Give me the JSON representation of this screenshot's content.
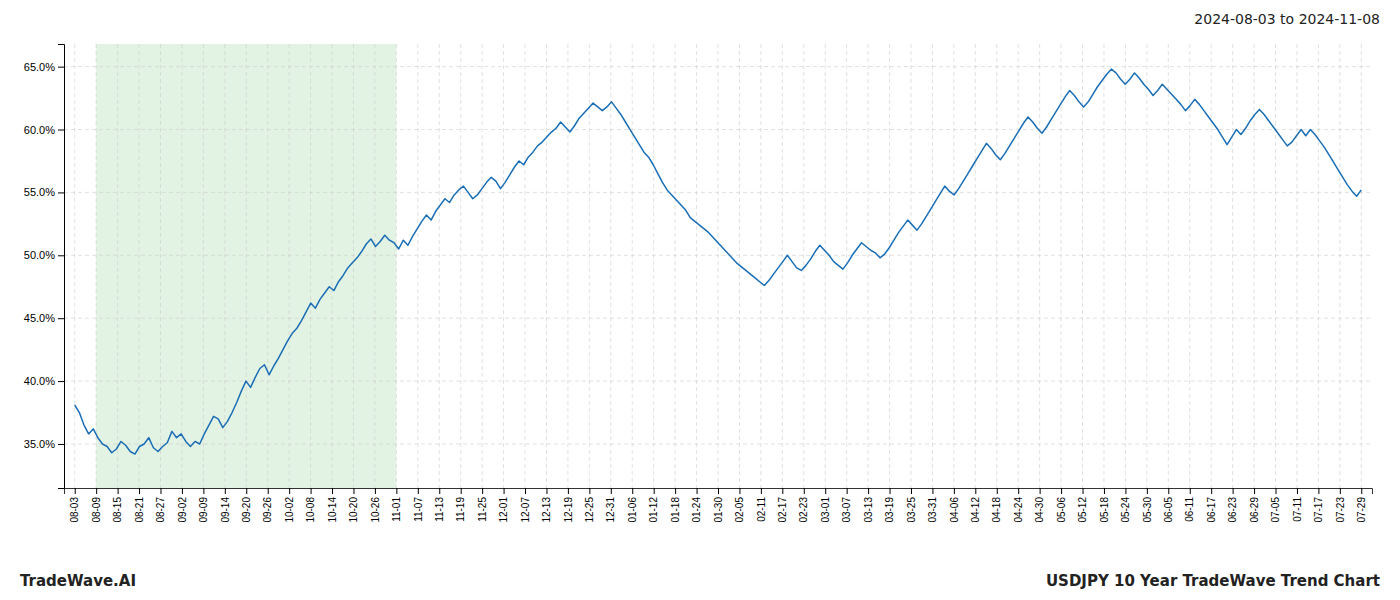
{
  "chart_data": {
    "type": "line",
    "title": "USDJPY 10 Year TradeWave Trend Chart",
    "subtitle": "2024-08-03 to 2024-11-08",
    "annotations": [
      "TradeWave.AI"
    ],
    "color": "#1a6eb5",
    "grid": true,
    "shaded_region": {
      "x_start": 1,
      "x_end": 15,
      "color": "#d4ecd4"
    },
    "xlim": [
      -0.5,
      60.5
    ],
    "xticks": [
      {
        "value": 0,
        "label": "08-03"
      },
      {
        "value": 1,
        "label": "08-09"
      },
      {
        "value": 2,
        "label": "08-15"
      },
      {
        "value": 3,
        "label": "08-21"
      },
      {
        "value": 4,
        "label": "08-27"
      },
      {
        "value": 5,
        "label": "09-02"
      },
      {
        "value": 6,
        "label": "09-09"
      },
      {
        "value": 7,
        "label": "09-14"
      },
      {
        "value": 8,
        "label": "09-20"
      },
      {
        "value": 9,
        "label": "09-26"
      },
      {
        "value": 10,
        "label": "10-02"
      },
      {
        "value": 11,
        "label": "10-08"
      },
      {
        "value": 12,
        "label": "10-14"
      },
      {
        "value": 13,
        "label": "10-20"
      },
      {
        "value": 14,
        "label": "10-26"
      },
      {
        "value": 15,
        "label": "11-01"
      },
      {
        "value": 16,
        "label": "11-07"
      },
      {
        "value": 17,
        "label": "11-13"
      },
      {
        "value": 18,
        "label": "11-19"
      },
      {
        "value": 19,
        "label": "11-25"
      },
      {
        "value": 20,
        "label": "12-01"
      },
      {
        "value": 21,
        "label": "12-07"
      },
      {
        "value": 22,
        "label": "12-13"
      },
      {
        "value": 23,
        "label": "12-19"
      },
      {
        "value": 24,
        "label": "12-25"
      },
      {
        "value": 25,
        "label": "12-31"
      },
      {
        "value": 26,
        "label": "01-06"
      },
      {
        "value": 27,
        "label": "01-12"
      },
      {
        "value": 28,
        "label": "01-18"
      },
      {
        "value": 29,
        "label": "01-24"
      },
      {
        "value": 30,
        "label": "01-30"
      },
      {
        "value": 31,
        "label": "02-05"
      },
      {
        "value": 32,
        "label": "02-11"
      },
      {
        "value": 33,
        "label": "02-17"
      },
      {
        "value": 34,
        "label": "02-23"
      },
      {
        "value": 35,
        "label": "03-01"
      },
      {
        "value": 36,
        "label": "03-07"
      },
      {
        "value": 37,
        "label": "03-13"
      },
      {
        "value": 38,
        "label": "03-19"
      },
      {
        "value": 39,
        "label": "03-25"
      },
      {
        "value": 40,
        "label": "03-31"
      },
      {
        "value": 41,
        "label": "04-06"
      },
      {
        "value": 42,
        "label": "04-12"
      },
      {
        "value": 43,
        "label": "04-18"
      },
      {
        "value": 44,
        "label": "04-24"
      },
      {
        "value": 45,
        "label": "04-30"
      },
      {
        "value": 46,
        "label": "05-06"
      },
      {
        "value": 47,
        "label": "05-12"
      },
      {
        "value": 48,
        "label": "05-18"
      },
      {
        "value": 49,
        "label": "05-24"
      },
      {
        "value": 50,
        "label": "05-30"
      },
      {
        "value": 51,
        "label": "06-05"
      },
      {
        "value": 52,
        "label": "06-11"
      },
      {
        "value": 53,
        "label": "06-17"
      },
      {
        "value": 54,
        "label": "06-23"
      },
      {
        "value": 55,
        "label": "06-29"
      },
      {
        "value": 56,
        "label": "07-05"
      },
      {
        "value": 57,
        "label": "07-11"
      },
      {
        "value": 58,
        "label": "07-17"
      },
      {
        "value": 59,
        "label": "07-23"
      },
      {
        "value": 60,
        "label": "07-29"
      }
    ],
    "ylim": [
      0.315,
      0.668
    ],
    "yticks": [
      {
        "value": 0.35,
        "label": "35.0%"
      },
      {
        "value": 0.4,
        "label": "40.0%"
      },
      {
        "value": 0.45,
        "label": "45.0%"
      },
      {
        "value": 0.5,
        "label": "50.0%"
      },
      {
        "value": 0.55,
        "label": "55.0%"
      },
      {
        "value": 0.6,
        "label": "60.0%"
      },
      {
        "value": 0.65,
        "label": "65.0%"
      }
    ],
    "x": [
      0,
      0.2158,
      0.4317,
      0.6475,
      0.8633,
      1.0791,
      1.295,
      1.5108,
      1.7266,
      1.9424,
      2.1583,
      2.3741,
      2.5899,
      2.8058,
      3.0216,
      3.2374,
      3.4532,
      3.6691,
      3.8849,
      4.1007,
      4.3165,
      4.5324,
      4.7482,
      4.964,
      5.1799,
      5.3957,
      5.6115,
      5.8273,
      6.0432,
      6.259,
      6.4748,
      6.6906,
      6.9065,
      7.1223,
      7.3381,
      7.554,
      7.7698,
      7.9856,
      8.2014,
      8.4173,
      8.6331,
      8.8489,
      9.0647,
      9.2806,
      9.4964,
      9.7122,
      9.9281,
      10.1439,
      10.3597,
      10.5755,
      10.7914,
      11.0072,
      11.223,
      11.4388,
      11.6547,
      11.8705,
      12.0863,
      12.3022,
      12.518,
      12.7338,
      12.9496,
      13.1655,
      13.3813,
      13.5971,
      13.8129,
      14.0288,
      14.2446,
      14.4604,
      14.6763,
      14.8921,
      15.1079,
      15.3237,
      15.5396,
      15.7554,
      15.9712,
      16.1871,
      16.4029,
      16.6187,
      16.8345,
      17.0504,
      17.2662,
      17.482,
      17.6978,
      17.9137,
      18.1295,
      18.3453,
      18.5612,
      18.777,
      18.9928,
      19.2086,
      19.4245,
      19.6403,
      19.8561,
      20.0719,
      20.2878,
      20.5036,
      20.7194,
      20.9353,
      21.1511,
      21.3669,
      21.5827,
      21.7986,
      22.0144,
      22.2302,
      22.446,
      22.6619,
      22.8777,
      23.0935,
      23.3094,
      23.5252,
      23.741,
      23.9568,
      24.1727,
      24.3885,
      24.6043,
      24.8201,
      25.036,
      25.2518,
      25.4676,
      25.6835,
      25.8993,
      26.1151,
      26.3309,
      26.5468,
      26.7626,
      26.9784,
      27.1942,
      27.4101,
      27.6259,
      27.8417,
      28.0576,
      28.2734,
      28.4892,
      28.705,
      28.9209,
      29.1367,
      29.3525,
      29.5683,
      29.7842,
      30,
      30.2158,
      30.4317,
      30.6475,
      30.8633,
      31.0791,
      31.295,
      31.5108,
      31.7266,
      31.9424,
      32.1583,
      32.3741,
      32.5899,
      32.8058,
      33.0216,
      33.2374,
      33.4532,
      33.6691,
      33.8849,
      34.1007,
      34.3165,
      34.5324,
      34.7482,
      34.964,
      35.1799,
      35.3957,
      35.6115,
      35.8273,
      36.0432,
      36.259,
      36.4748,
      36.6906,
      36.9065,
      37.1223,
      37.3381,
      37.554,
      37.7698,
      37.9856,
      38.2014,
      38.4173,
      38.6331,
      38.8489,
      39.0647,
      39.2806,
      39.4964,
      39.7122,
      39.9281,
      40.1439,
      40.3597,
      40.5755,
      40.7914,
      41.0072,
      41.223,
      41.4388,
      41.6547,
      41.8705,
      42.0863,
      42.3022,
      42.518,
      42.7338,
      42.9496,
      43.1655,
      43.3813,
      43.5971,
      43.8129,
      44.0288,
      44.2446,
      44.4604,
      44.6763,
      44.8921,
      45.1079,
      45.3237,
      45.5396,
      45.7554,
      45.9712,
      46.1871,
      46.4029,
      46.6187,
      46.8345,
      47.0504,
      47.2662,
      47.482,
      47.6978,
      47.9137,
      48.1295,
      48.3453,
      48.5612,
      48.777,
      48.9928,
      49.2086,
      49.4245,
      49.6403,
      49.8561,
      50.0719,
      50.2878,
      50.5036,
      50.7194,
      50.9353,
      51.1511,
      51.3669,
      51.5827,
      51.7986,
      52.0144,
      52.2302,
      52.446,
      52.6619,
      52.8777,
      53.0935,
      53.3094,
      53.5252,
      53.741,
      53.9568,
      54.1727,
      54.3885,
      54.6043,
      54.8201,
      55.036,
      55.2518,
      55.4676,
      55.6835,
      55.8993,
      56.1151,
      56.3309,
      56.5468,
      56.7626,
      56.9784,
      57.1942,
      57.4101,
      57.6259,
      57.8417,
      58.0576,
      58.2734,
      58.4892,
      58.705,
      58.9209,
      59.1367,
      59.3525,
      59.5683,
      59.7842,
      60
    ],
    "values": [
      0.381,
      0.375,
      0.365,
      0.358,
      0.362,
      0.355,
      0.35,
      0.348,
      0.343,
      0.346,
      0.352,
      0.349,
      0.344,
      0.342,
      0.348,
      0.35,
      0.355,
      0.347,
      0.344,
      0.348,
      0.351,
      0.36,
      0.355,
      0.358,
      0.352,
      0.348,
      0.352,
      0.35,
      0.358,
      0.365,
      0.372,
      0.37,
      0.363,
      0.368,
      0.375,
      0.383,
      0.392,
      0.4,
      0.395,
      0.403,
      0.41,
      0.413,
      0.405,
      0.412,
      0.418,
      0.425,
      0.432,
      0.438,
      0.442,
      0.448,
      0.455,
      0.462,
      0.458,
      0.465,
      0.47,
      0.475,
      0.472,
      0.479,
      0.484,
      0.49,
      0.494,
      0.498,
      0.503,
      0.509,
      0.513,
      0.507,
      0.511,
      0.516,
      0.512,
      0.51,
      0.505,
      0.512,
      0.508,
      0.515,
      0.521,
      0.527,
      0.532,
      0.528,
      0.535,
      0.54,
      0.545,
      0.542,
      0.548,
      0.552,
      0.555,
      0.55,
      0.545,
      0.548,
      0.553,
      0.558,
      0.562,
      0.559,
      0.553,
      0.558,
      0.564,
      0.57,
      0.575,
      0.572,
      0.578,
      0.582,
      0.587,
      0.59,
      0.594,
      0.598,
      0.601,
      0.606,
      0.602,
      0.598,
      0.603,
      0.609,
      0.613,
      0.617,
      0.621,
      0.618,
      0.615,
      0.618,
      0.622,
      0.617,
      0.612,
      0.606,
      0.6,
      0.594,
      0.588,
      0.582,
      0.578,
      0.572,
      0.565,
      0.558,
      0.552,
      0.548,
      0.544,
      0.54,
      0.536,
      0.53,
      0.527,
      0.524,
      0.521,
      0.518,
      0.514,
      0.51,
      0.506,
      0.502,
      0.498,
      0.494,
      0.491,
      0.488,
      0.485,
      0.482,
      0.479,
      0.476,
      0.48,
      0.485,
      0.49,
      0.495,
      0.5,
      0.495,
      0.49,
      0.488,
      0.492,
      0.497,
      0.503,
      0.508,
      0.504,
      0.5,
      0.495,
      0.492,
      0.489,
      0.494,
      0.5,
      0.505,
      0.51,
      0.507,
      0.504,
      0.502,
      0.498,
      0.501,
      0.506,
      0.512,
      0.518,
      0.523,
      0.528,
      0.524,
      0.52,
      0.525,
      0.531,
      0.537,
      0.543,
      0.549,
      0.555,
      0.551,
      0.548,
      0.553,
      0.559,
      0.565,
      0.571,
      0.577,
      0.583,
      0.589,
      0.585,
      0.58,
      0.576,
      0.581,
      0.587,
      0.593,
      0.599,
      0.605,
      0.61,
      0.606,
      0.601,
      0.597,
      0.602,
      0.608,
      0.614,
      0.62,
      0.626,
      0.631,
      0.627,
      0.622,
      0.618,
      0.622,
      0.628,
      0.634,
      0.639,
      0.644,
      0.648,
      0.645,
      0.64,
      0.636,
      0.64,
      0.645,
      0.641,
      0.636,
      0.632,
      0.627,
      0.631,
      0.636,
      0.632,
      0.628,
      0.624,
      0.62,
      0.615,
      0.619,
      0.624,
      0.62,
      0.615,
      0.61,
      0.605,
      0.6,
      0.594,
      0.588,
      0.594,
      0.6,
      0.596,
      0.601,
      0.607,
      0.612,
      0.616,
      0.612,
      0.607,
      0.602,
      0.597,
      0.592,
      0.587,
      0.59,
      0.595,
      0.6,
      0.595,
      0.6,
      0.596,
      0.591,
      0.586,
      0.58,
      0.574,
      0.568,
      0.562,
      0.556,
      0.551,
      0.547,
      0.552
    ]
  }
}
